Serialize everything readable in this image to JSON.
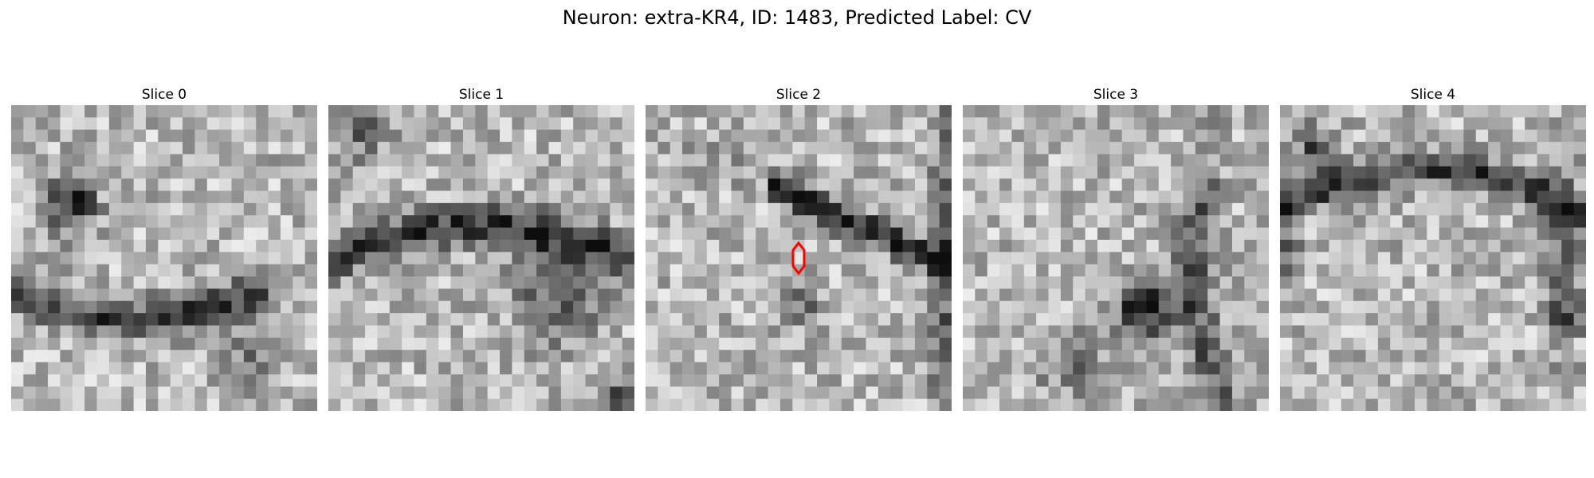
{
  "figure": {
    "title": "Neuron: extra-KR4, ID: 1483, Predicted Label: CV"
  },
  "panels": [
    {
      "title": "Slice 0",
      "seed": 11,
      "dark_regions": "upper-left blob, horizontal dark band across middle-left"
    },
    {
      "title": "Slice 1",
      "seed": 23,
      "dark_regions": "arched dark band across middle, dark corner bottom-right"
    },
    {
      "title": "Slice 2",
      "seed": 37,
      "dark_regions": "diagonal dark band upper-right",
      "has_marker": true
    },
    {
      "title": "Slice 3",
      "seed": 53,
      "dark_regions": "dark blob lower-center, curved band right"
    },
    {
      "title": "Slice 4",
      "seed": 71,
      "dark_regions": "arched dark band across upper half, dark right edge"
    }
  ],
  "marker": {
    "panel": 2,
    "shape": "hexagon",
    "color": "#ff0000"
  },
  "colormap": "gray"
}
